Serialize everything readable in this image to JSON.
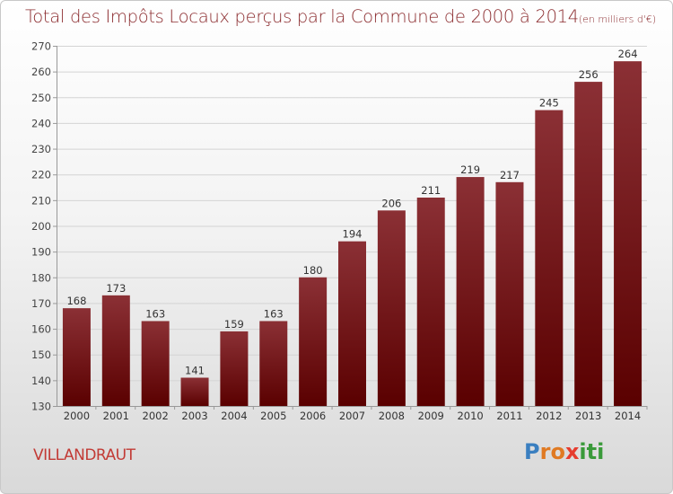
{
  "title": {
    "main": "Total des Impôts Locaux perçus par la Commune de 2000 à 2014",
    "unit": "(en milliers d'€)"
  },
  "commune": "VILLANDRAUT",
  "logo": {
    "text": "Proxiti",
    "letters": [
      {
        "ch": "P",
        "color": "#3a7fc0"
      },
      {
        "ch": "r",
        "color": "#e07a23"
      },
      {
        "ch": "o",
        "color": "#e07a23"
      },
      {
        "ch": "x",
        "color": "#e63c2f"
      },
      {
        "ch": "i",
        "color": "#3a9a3a"
      },
      {
        "ch": "t",
        "color": "#3a9a3a"
      },
      {
        "ch": "i",
        "color": "#3a9a3a"
      }
    ]
  },
  "chart_data": {
    "type": "bar",
    "title": "Total des Impôts Locaux perçus par la Commune de 2000 à 2014",
    "unit": "(en milliers d'€)",
    "categories": [
      "2000",
      "2001",
      "2002",
      "2003",
      "2004",
      "2005",
      "2006",
      "2007",
      "2008",
      "2009",
      "2010",
      "2011",
      "2012",
      "2013",
      "2014"
    ],
    "values": [
      168,
      173,
      163,
      141,
      159,
      163,
      180,
      194,
      206,
      211,
      219,
      217,
      245,
      256,
      264
    ],
    "ylim": [
      130,
      270
    ],
    "yticks": [
      130,
      140,
      150,
      160,
      170,
      180,
      190,
      200,
      210,
      220,
      230,
      240,
      250,
      260,
      270
    ],
    "grid": true,
    "bar_color_top": "#8b3035",
    "bar_color_bottom": "#5a0000"
  }
}
